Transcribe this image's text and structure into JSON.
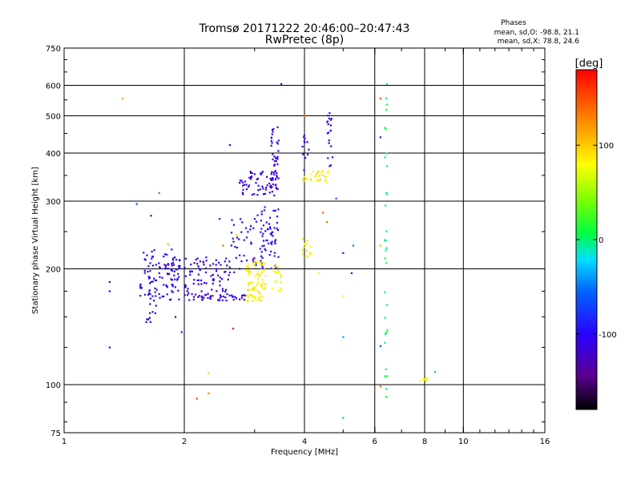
{
  "chart_data": {
    "type": "scatter",
    "title": "Tromsø 20171222 20:46:00–20:47:43",
    "subtitle": "RwPretec (8p)",
    "xlabel": "Frequency [MHz]",
    "ylabel": "Stationary phase Virtual Height [km]",
    "x_scale": "log",
    "y_scale": "log",
    "xlim": [
      1,
      16
    ],
    "ylim": [
      75,
      750
    ],
    "x_ticks": [
      {
        "value": 1,
        "label": "1"
      },
      {
        "value": 2,
        "label": "2"
      },
      {
        "value": 4,
        "label": "4"
      },
      {
        "value": 6,
        "label": "6"
      },
      {
        "value": 8,
        "label": "8"
      },
      {
        "value": 10,
        "label": "10"
      },
      {
        "value": 16,
        "label": "16"
      }
    ],
    "y_ticks": [
      {
        "value": 75,
        "label": "75"
      },
      {
        "value": 100,
        "label": "100"
      },
      {
        "value": 200,
        "label": "200"
      },
      {
        "value": 300,
        "label": "300"
      },
      {
        "value": 400,
        "label": "400"
      },
      {
        "value": 500,
        "label": "500"
      },
      {
        "value": 600,
        "label": "600"
      },
      {
        "value": 750,
        "label": "750"
      }
    ],
    "x_gridlines": [
      2,
      4,
      6,
      8,
      10
    ],
    "y_gridlines": [
      100,
      200,
      300,
      400,
      500,
      600
    ],
    "grid": true,
    "stats": {
      "heading": "Phases",
      "line_o": "mean, sd,O:  -98.8, 21.1",
      "line_x": "mean, sd,X:  78.8, 24.6"
    },
    "colorbar": {
      "label": "[deg]",
      "range": [
        -180,
        180
      ],
      "ticks": [
        {
          "value": 100,
          "label": "100"
        },
        {
          "value": 0,
          "label": "0"
        },
        {
          "value": -100,
          "label": "-100"
        }
      ]
    },
    "clusters": [
      {
        "name": "o-band-1.7",
        "x": [
          1.55,
          1.95
        ],
        "y": [
          165,
          225
        ],
        "phase": -105,
        "count": 110
      },
      {
        "name": "o-band-1.7-low",
        "x": [
          1.6,
          1.7
        ],
        "y": [
          145,
          165
        ],
        "phase": -110,
        "count": 10
      },
      {
        "name": "o-band-2.3",
        "x": [
          2.0,
          2.6
        ],
        "y": [
          165,
          215
        ],
        "phase": -108,
        "count": 90
      },
      {
        "name": "o-band-2.3-base",
        "x": [
          2.05,
          2.9
        ],
        "y": [
          166,
          172
        ],
        "phase": -115,
        "count": 30
      },
      {
        "name": "o-band-3.0",
        "x": [
          2.6,
          3.2
        ],
        "y": [
          195,
          280
        ],
        "phase": -105,
        "count": 45
      },
      {
        "name": "o-band-3.3",
        "x": [
          3.1,
          3.45
        ],
        "y": [
          200,
          290
        ],
        "phase": -100,
        "count": 55
      },
      {
        "name": "f-o-300",
        "x": [
          2.75,
          3.45
        ],
        "y": [
          310,
          360
        ],
        "phase": -112,
        "count": 70
      },
      {
        "name": "f-o-cusp-3.4",
        "x": [
          3.3,
          3.45
        ],
        "y": [
          340,
          470
        ],
        "phase": -110,
        "count": 35
      },
      {
        "name": "f-o-cusp-4.7",
        "x": [
          4.55,
          4.7
        ],
        "y": [
          370,
          510
        ],
        "phase": -105,
        "count": 20
      },
      {
        "name": "f-o-cusp-4.0",
        "x": [
          3.95,
          4.1
        ],
        "y": [
          360,
          450
        ],
        "phase": -108,
        "count": 12
      },
      {
        "name": "x-band-3.0",
        "x": [
          2.85,
          3.2
        ],
        "y": [
          165,
          210
        ],
        "phase": 85,
        "count": 80
      },
      {
        "name": "x-band-3.4",
        "x": [
          3.3,
          3.5
        ],
        "y": [
          175,
          205
        ],
        "phase": 80,
        "count": 18
      },
      {
        "name": "x-band-4.0",
        "x": [
          3.95,
          4.15
        ],
        "y": [
          215,
          240
        ],
        "phase": 80,
        "count": 14
      },
      {
        "name": "x-f-350",
        "x": [
          3.95,
          4.65
        ],
        "y": [
          335,
          360
        ],
        "phase": 88,
        "count": 30
      },
      {
        "name": "line-6.4",
        "x": [
          6.35,
          6.45
        ],
        "y": [
          90,
          620
        ],
        "phase": 0,
        "count": 32
      },
      {
        "name": "patch-8.0",
        "x": [
          7.8,
          8.15
        ],
        "y": [
          102,
          104
        ],
        "phase": 85,
        "count": 12
      }
    ],
    "scattered": [
      {
        "x": 1.3,
        "y": 185,
        "phase": -110
      },
      {
        "x": 1.3,
        "y": 175,
        "phase": -100
      },
      {
        "x": 1.3,
        "y": 125,
        "phase": -110
      },
      {
        "x": 1.4,
        "y": 555,
        "phase": 110
      },
      {
        "x": 1.52,
        "y": 295,
        "phase": -60
      },
      {
        "x": 1.73,
        "y": 315,
        "phase": -40
      },
      {
        "x": 1.65,
        "y": 275,
        "phase": -100
      },
      {
        "x": 1.82,
        "y": 232,
        "phase": 40
      },
      {
        "x": 1.9,
        "y": 150,
        "phase": -120
      },
      {
        "x": 1.97,
        "y": 137,
        "phase": -90
      },
      {
        "x": 2.15,
        "y": 92,
        "phase": 160
      },
      {
        "x": 2.3,
        "y": 95,
        "phase": 130
      },
      {
        "x": 2.3,
        "y": 107,
        "phase": 95
      },
      {
        "x": 2.65,
        "y": 140,
        "phase": 170
      },
      {
        "x": 2.6,
        "y": 420,
        "phase": -130
      },
      {
        "x": 2.5,
        "y": 230,
        "phase": 140
      },
      {
        "x": 3.5,
        "y": 605,
        "phase": -120
      },
      {
        "x": 4.0,
        "y": 500,
        "phase": 140
      },
      {
        "x": 4.45,
        "y": 280,
        "phase": 140
      },
      {
        "x": 4.55,
        "y": 265,
        "phase": 140
      },
      {
        "x": 4.8,
        "y": 305,
        "phase": -70
      },
      {
        "x": 5.0,
        "y": 220,
        "phase": -130
      },
      {
        "x": 5.3,
        "y": 230,
        "phase": -50
      },
      {
        "x": 5.25,
        "y": 195,
        "phase": -110
      },
      {
        "x": 5.0,
        "y": 170,
        "phase": 80
      },
      {
        "x": 5.0,
        "y": 133,
        "phase": -40
      },
      {
        "x": 5.0,
        "y": 82,
        "phase": -30
      },
      {
        "x": 6.2,
        "y": 555,
        "phase": 150
      },
      {
        "x": 6.2,
        "y": 440,
        "phase": -140
      },
      {
        "x": 6.2,
        "y": 230,
        "phase": 40
      },
      {
        "x": 6.2,
        "y": 126,
        "phase": -60
      },
      {
        "x": 6.2,
        "y": 99,
        "phase": 140
      },
      {
        "x": 8.5,
        "y": 108,
        "phase": -30
      },
      {
        "x": 4.35,
        "y": 195,
        "phase": 85
      },
      {
        "x": 2.45,
        "y": 270,
        "phase": -110
      },
      {
        "x": 2.7,
        "y": 245,
        "phase": 90
      }
    ]
  }
}
